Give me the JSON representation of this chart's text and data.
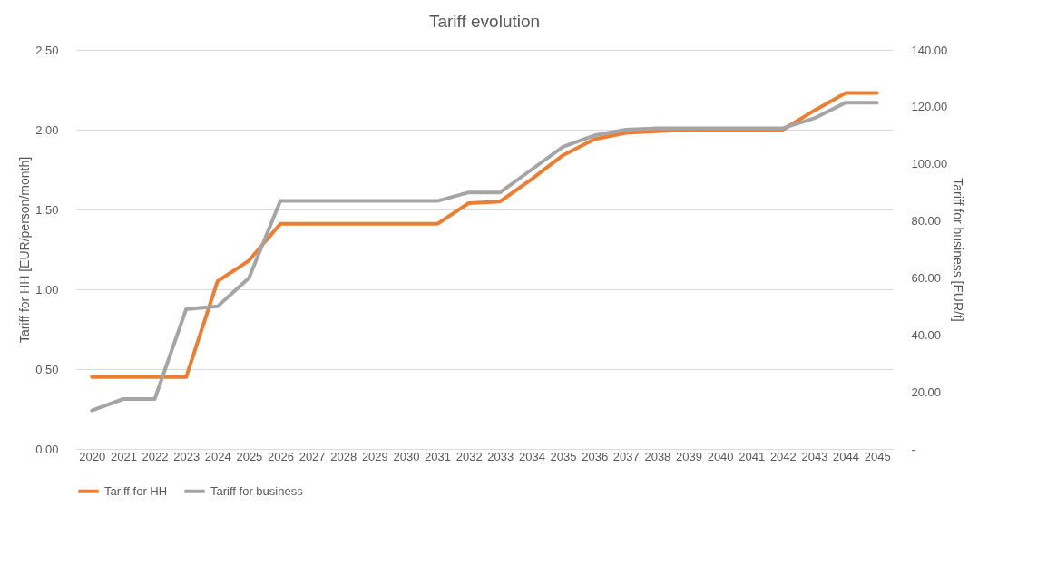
{
  "chart_data": {
    "type": "line",
    "title": "Tariff evolution",
    "ylabel": "Tariff for HH [EUR/person/month]",
    "y2label": "Tariff for business [EUR/t]",
    "categories": [
      "2020",
      "2021",
      "2022",
      "2023",
      "2024",
      "2025",
      "2026",
      "2027",
      "2028",
      "2029",
      "2030",
      "2031",
      "2032",
      "2033",
      "2034",
      "2035",
      "2036",
      "2037",
      "2038",
      "2039",
      "2040",
      "2041",
      "2042",
      "2043",
      "2044",
      "2045"
    ],
    "series": [
      {
        "name": "Tariff for HH",
        "color": "#ed7d31",
        "values": [
          0.45,
          0.45,
          0.45,
          0.45,
          1.05,
          1.18,
          1.41,
          1.41,
          1.41,
          1.41,
          1.41,
          1.41,
          1.54,
          1.55,
          1.69,
          1.84,
          1.94,
          1.98,
          1.99,
          2.0,
          2.0,
          2.0,
          2.0,
          2.12,
          2.23,
          2.23
        ]
      },
      {
        "name": "Tariff for business",
        "color": "#a5a5a5",
        "axis": "y2",
        "values": [
          13.5,
          17.5,
          17.5,
          49,
          50,
          60,
          87,
          87,
          87,
          87,
          87,
          87,
          90,
          90,
          98,
          106,
          110,
          112,
          112.5,
          112.5,
          112.5,
          112.5,
          112.5,
          116,
          121.5,
          121.5
        ]
      }
    ],
    "ylim": [
      0,
      2.5
    ],
    "yticks": [
      {
        "value": 0,
        "label": "0.00"
      },
      {
        "value": 0.5,
        "label": "0.50"
      },
      {
        "value": 1,
        "label": "1.00"
      },
      {
        "value": 1.5,
        "label": "1.50"
      },
      {
        "value": 2,
        "label": "2.00"
      },
      {
        "value": 2.5,
        "label": "2.50"
      }
    ],
    "y2lim": [
      0,
      140
    ],
    "y2ticks": [
      {
        "value": 0,
        "label": "-"
      },
      {
        "value": 20,
        "label": "20.00"
      },
      {
        "value": 40,
        "label": "40.00"
      },
      {
        "value": 60,
        "label": "60.00"
      },
      {
        "value": 80,
        "label": "80.00"
      },
      {
        "value": 100,
        "label": "100.00"
      },
      {
        "value": 120,
        "label": "120.00"
      },
      {
        "value": 140,
        "label": "140.00"
      }
    ],
    "grid": "y",
    "legend": "bottom",
    "marker": "none",
    "line_style": "solid"
  }
}
